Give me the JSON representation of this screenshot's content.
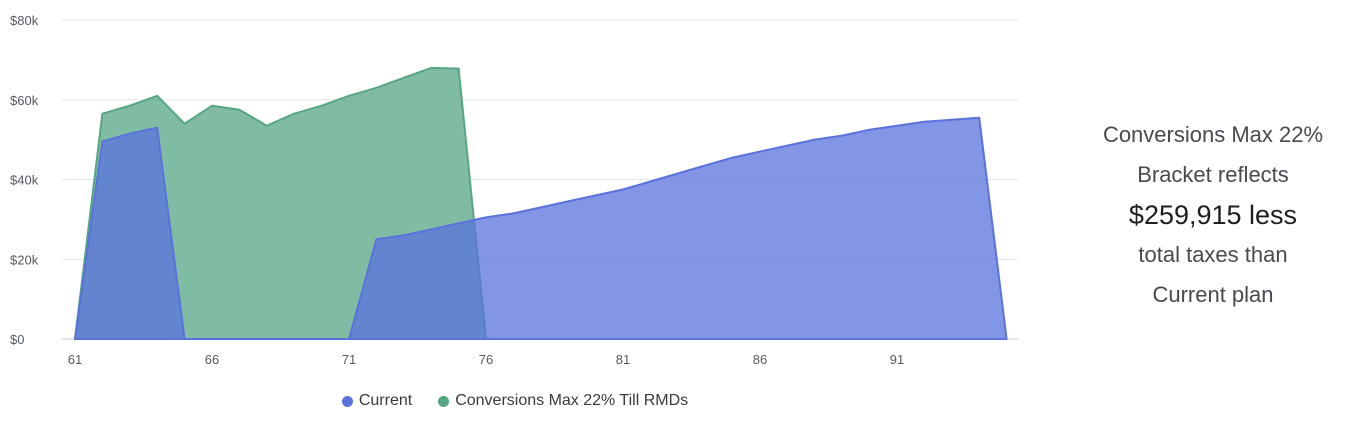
{
  "chart_data": {
    "type": "area",
    "x": [
      61,
      62,
      63,
      64,
      65,
      66,
      67,
      68,
      69,
      70,
      71,
      72,
      73,
      74,
      75,
      76,
      77,
      78,
      79,
      80,
      81,
      82,
      83,
      84,
      85,
      86,
      87,
      88,
      89,
      90,
      91,
      92,
      93,
      94,
      95
    ],
    "x_ticks": [
      "61",
      "66",
      "71",
      "76",
      "81",
      "86",
      "91"
    ],
    "y_ticks": [
      "$0",
      "$20k",
      "$40k",
      "$60k",
      "$80k"
    ],
    "ylim": [
      0,
      80000
    ],
    "grid": true,
    "series": [
      {
        "name": "Conversions Max 22% Till RMDs",
        "color": "#56a684",
        "values": [
          0,
          56500,
          58500,
          61000,
          54000,
          58500,
          57500,
          53500,
          56500,
          58500,
          61000,
          63000,
          65500,
          68000,
          67800,
          0,
          0,
          0,
          0,
          0,
          0,
          0,
          0,
          0,
          0,
          0,
          0,
          0,
          0,
          0,
          0,
          0,
          0,
          0,
          0
        ]
      },
      {
        "name": "Current",
        "color": "#5a72dc",
        "values": [
          0,
          49500,
          51500,
          53000,
          0,
          0,
          0,
          0,
          0,
          0,
          0,
          25000,
          26000,
          27500,
          29000,
          30500,
          31500,
          33000,
          34500,
          36000,
          37500,
          39500,
          41500,
          43500,
          45500,
          47000,
          48500,
          50000,
          51000,
          52500,
          53500,
          54500,
          55000,
          55500,
          0
        ]
      }
    ]
  },
  "legend": {
    "current": "Current",
    "conversions": "Conversions Max 22% Till RMDs"
  },
  "summary": {
    "line1": "Conversions Max 22%",
    "line2": "Bracket reflects",
    "amount": "$259,915 less",
    "line4": "total taxes than",
    "line5": "Current plan"
  }
}
